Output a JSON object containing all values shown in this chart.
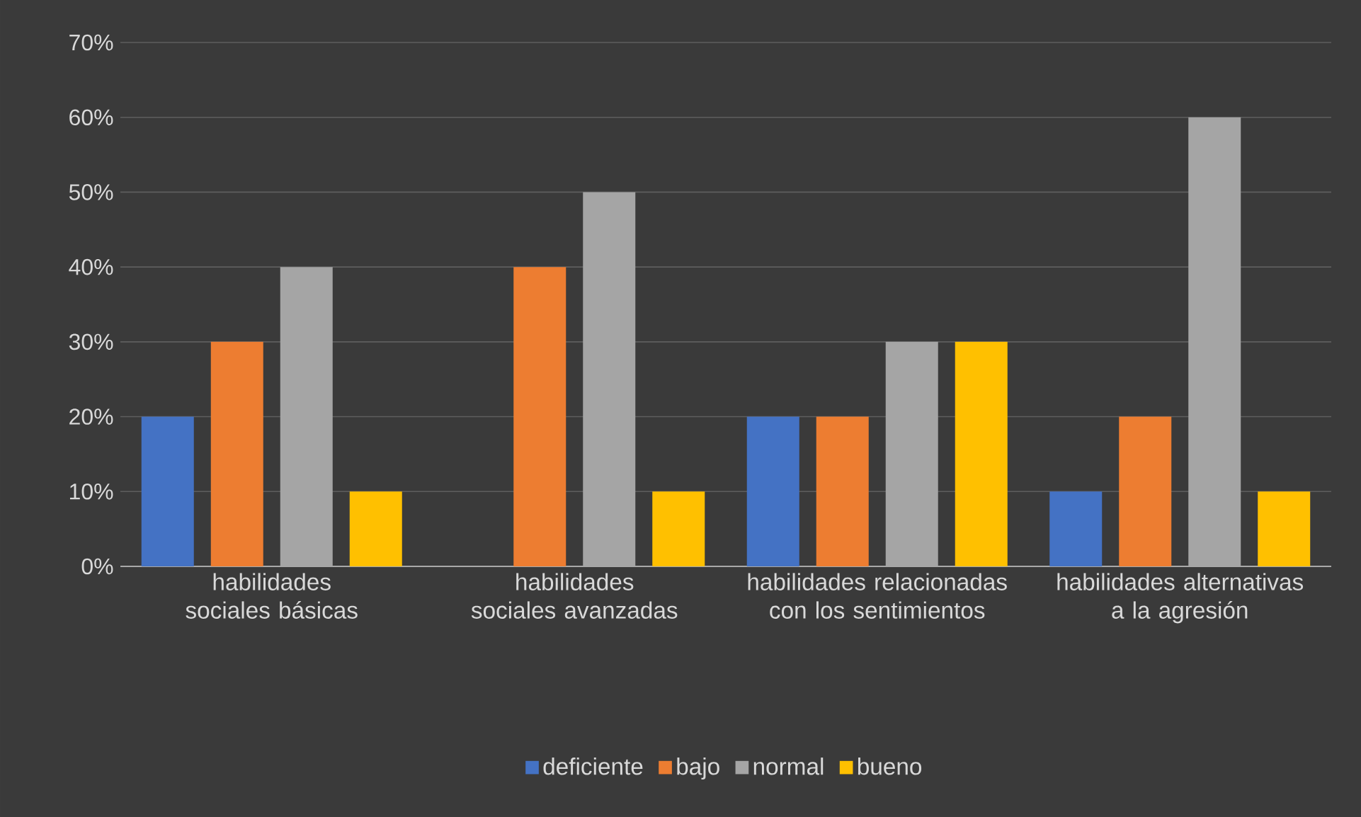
{
  "chart_data": {
    "type": "bar",
    "categories": [
      "habilidades sociales básicas",
      "habilidades sociales avanzadas",
      "habilidades relacionadas con los sentimientos",
      "habilidades alternativas a la agresión"
    ],
    "series": [
      {
        "name": "deficiente",
        "color": "#4472c4",
        "values": [
          20,
          0,
          20,
          10
        ]
      },
      {
        "name": "bajo",
        "color": "#ed7d31",
        "values": [
          30,
          40,
          20,
          20
        ]
      },
      {
        "name": "normal",
        "color": "#a5a5a5",
        "values": [
          40,
          50,
          30,
          60
        ]
      },
      {
        "name": "bueno",
        "color": "#ffc000",
        "values": [
          10,
          10,
          30,
          10
        ]
      }
    ],
    "ylim": [
      0,
      70
    ],
    "yticks": [
      {
        "value": 0,
        "label": "0%"
      },
      {
        "value": 10,
        "label": "10%"
      },
      {
        "value": 20,
        "label": "20%"
      },
      {
        "value": 30,
        "label": "30%"
      },
      {
        "value": 40,
        "label": "40%"
      },
      {
        "value": 50,
        "label": "50%"
      },
      {
        "value": 60,
        "label": "60%"
      },
      {
        "value": 70,
        "label": "70%"
      }
    ],
    "grid": "y",
    "legend": "bottom"
  }
}
